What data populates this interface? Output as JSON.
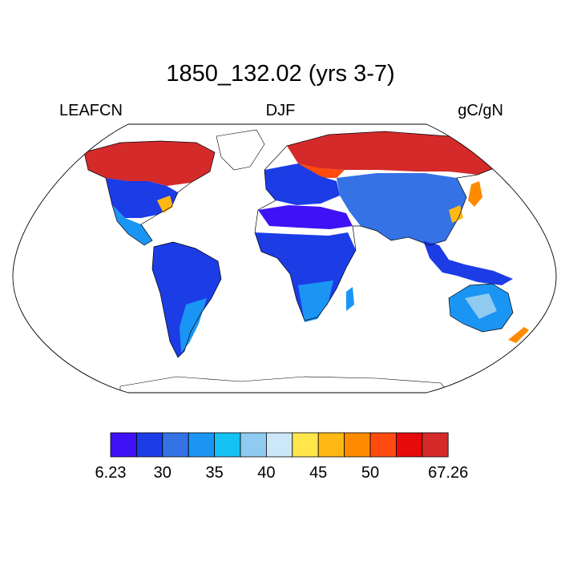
{
  "title": "1850_132.02 (yrs 3-7)",
  "left_label": "LEAFCN",
  "center_label": "DJF",
  "right_label": "gC/gN",
  "colorbar": {
    "colors": [
      "#3f12f5",
      "#1c3ce6",
      "#3472e6",
      "#1b95f4",
      "#16c1f3",
      "#8ecbef",
      "#cce6fa",
      "#ffe64d",
      "#ffb814",
      "#ff8a00",
      "#ff4a10",
      "#e60a0a",
      "#d42a2a"
    ],
    "tick_labels": [
      "6.23",
      "30",
      "35",
      "40",
      "45",
      "50",
      "67.26"
    ]
  },
  "map": {
    "projection": "robinson",
    "field": "LEAFCN",
    "season": "DJF",
    "units": "gC/gN"
  }
}
